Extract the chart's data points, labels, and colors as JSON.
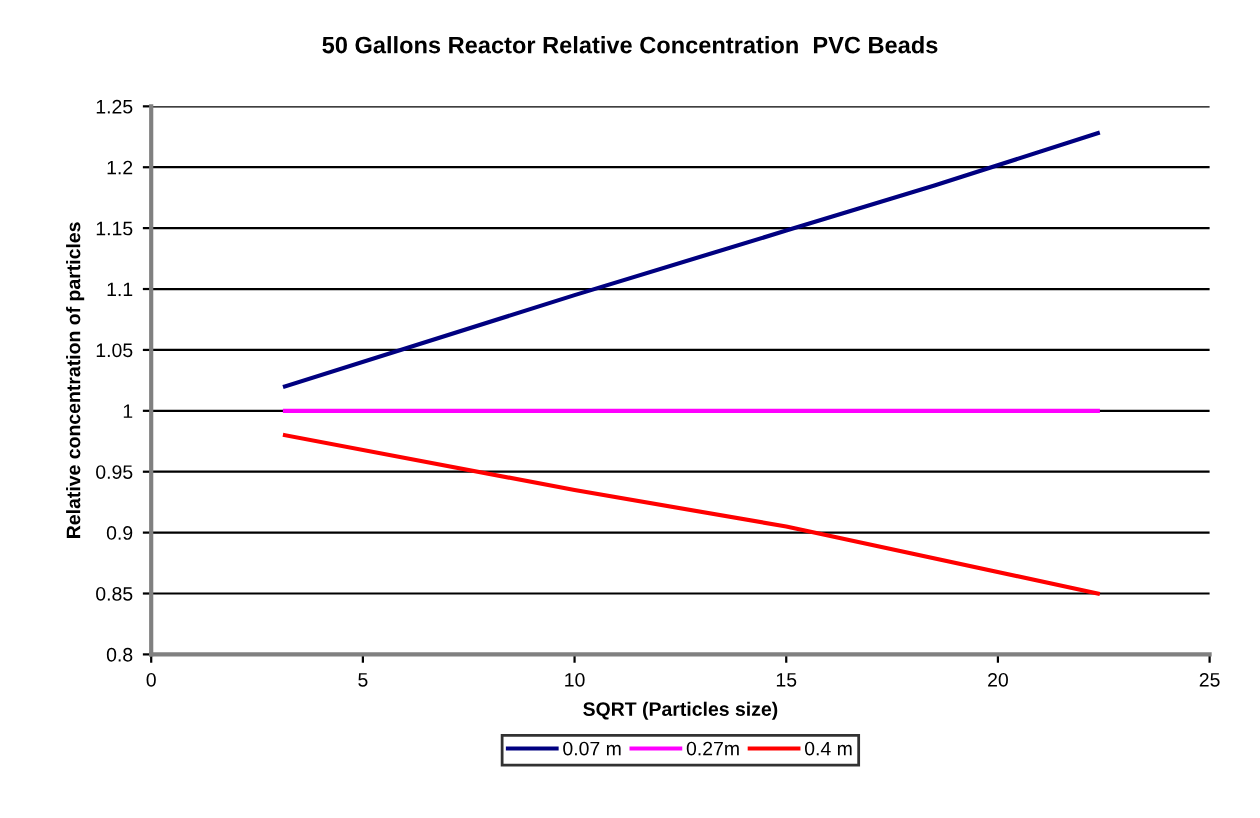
{
  "chart_data": {
    "type": "line",
    "title": "50 Gallons Reactor Relative Concentration  PVC Beads",
    "xlabel": "SQRT (Particles size)",
    "ylabel": "Relative concentration of particles",
    "series": [
      {
        "name": "0.07 m",
        "color": "#000080",
        "x": [
          3.16,
          10,
          15,
          18.5,
          22.36
        ],
        "values": [
          1.02,
          1.095,
          1.148,
          1.185,
          1.228
        ]
      },
      {
        "name": "0.27m",
        "color": "#ff00ff",
        "x": [
          3.16,
          22.36
        ],
        "values": [
          1.0,
          1.0
        ]
      },
      {
        "name": "0.4 m",
        "color": "#ff0000",
        "x": [
          3.16,
          10,
          15,
          22.36
        ],
        "values": [
          0.98,
          0.935,
          0.905,
          0.85
        ]
      }
    ],
    "xlim": [
      0,
      25
    ],
    "xticks": [
      0,
      5,
      10,
      15,
      20,
      25
    ],
    "ylim": [
      0.8,
      1.25
    ],
    "yticks": [
      0.8,
      0.85,
      0.9,
      0.95,
      1,
      1.05,
      1.1,
      1.15,
      1.2,
      1.25
    ],
    "grid": "y",
    "legend": "bottom",
    "marker": "none",
    "line_style": "solid"
  }
}
